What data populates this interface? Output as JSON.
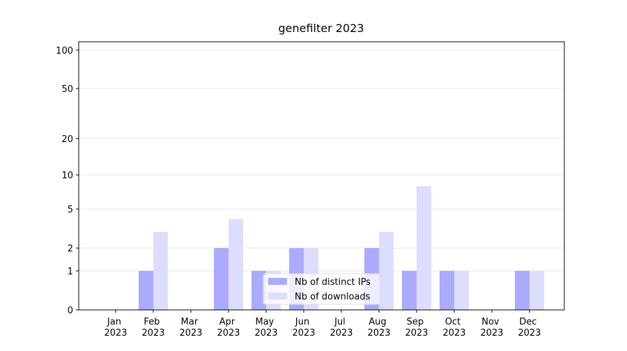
{
  "chart_data": {
    "type": "bar",
    "title": "genefilter 2023",
    "categories": [
      "Jan 2023",
      "Feb 2023",
      "Mar 2023",
      "Apr 2023",
      "May 2023",
      "Jun 2023",
      "Jul 2023",
      "Aug 2023",
      "Sep 2023",
      "Oct 2023",
      "Nov 2023",
      "Dec 2023"
    ],
    "series": [
      {
        "name": "Nb of distinct IPs",
        "color": "#aaaaff",
        "values": [
          0,
          1,
          0,
          2,
          1,
          2,
          0,
          2,
          1,
          1,
          0,
          1
        ]
      },
      {
        "name": "Nb of downloads",
        "color": "#ddddff",
        "values": [
          0,
          3,
          0,
          4,
          1,
          2,
          0,
          3,
          8,
          1,
          0,
          1
        ]
      }
    ],
    "yscale": "log1p",
    "ylim": [
      0,
      116
    ],
    "yticks": [
      0,
      1,
      2,
      5,
      10,
      20,
      50,
      100
    ],
    "grid": true,
    "legend": "lower center"
  }
}
